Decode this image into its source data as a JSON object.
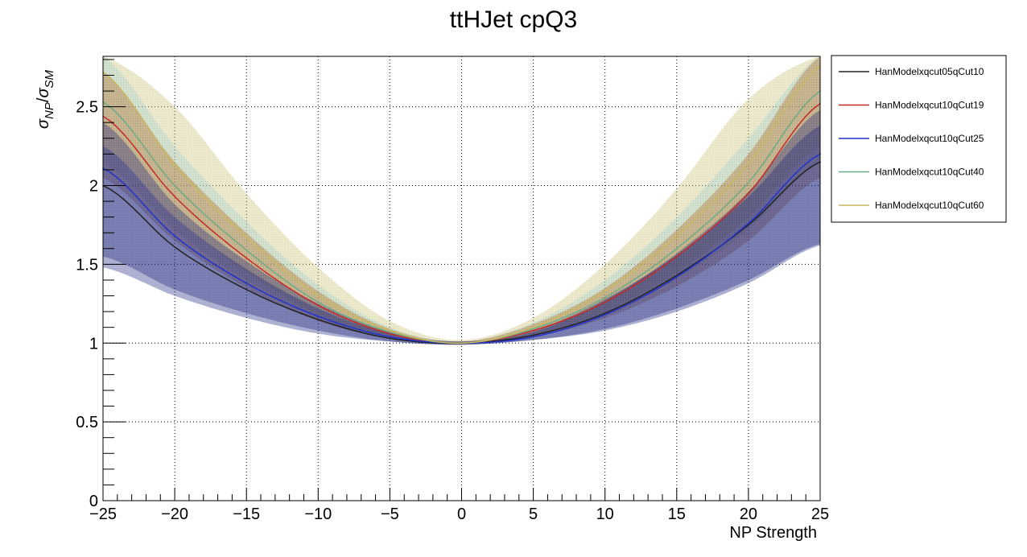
{
  "chart_data": {
    "type": "line",
    "title": "ttHJet cpQ3",
    "xlabel": "NP Strength",
    "ylabel": "σNP/σSM",
    "ylabel_parts": {
      "main_a": "σ",
      "sub_a": "NP",
      "slash": "/",
      "main_b": "σ",
      "sub_b": "SM"
    },
    "xlim": [
      -25,
      25
    ],
    "ylim": [
      0,
      2.82
    ],
    "x_ticks": [
      -25,
      -20,
      -15,
      -10,
      -5,
      0,
      5,
      10,
      15,
      20,
      25
    ],
    "x_tick_labels": [
      "−25",
      "−20",
      "−15",
      "−10",
      "−5",
      "0",
      "5",
      "10",
      "15",
      "20",
      "25"
    ],
    "y_ticks": [
      0,
      0.5,
      1,
      1.5,
      2,
      2.5
    ],
    "y_tick_labels": [
      "0",
      "0.5",
      "1",
      "1.5",
      "2",
      "2.5"
    ],
    "grid": true,
    "legend_position": "right",
    "x": [
      -25,
      -20,
      -15,
      -10,
      -5,
      0,
      5,
      10,
      15,
      20,
      25
    ],
    "series": [
      {
        "name": "HanModelxqcut05qCut10",
        "color": "#222222",
        "band_color": "#1a237e",
        "values": [
          2.0,
          1.61,
          1.34,
          1.15,
          1.03,
          1.0,
          1.05,
          1.19,
          1.43,
          1.75,
          2.15
        ],
        "band_low": [
          1.48,
          1.3,
          1.16,
          1.06,
          1.01,
          0.99,
          1.02,
          1.09,
          1.22,
          1.4,
          1.63
        ],
        "band_high": [
          2.25,
          1.8,
          1.47,
          1.22,
          1.06,
          1.01,
          1.08,
          1.28,
          1.56,
          1.93,
          2.38
        ]
      },
      {
        "name": "HanModelxqcut10qCut19",
        "color": "#c62828",
        "band_color": "#b5651d",
        "values": [
          2.44,
          1.93,
          1.54,
          1.24,
          1.06,
          1.0,
          1.08,
          1.26,
          1.55,
          1.95,
          2.52
        ],
        "band_low": [
          2.05,
          1.65,
          1.35,
          1.14,
          1.03,
          0.99,
          1.04,
          1.16,
          1.36,
          1.65,
          2.05
        ],
        "band_high": [
          2.72,
          2.15,
          1.7,
          1.33,
          1.09,
          1.01,
          1.12,
          1.35,
          1.72,
          2.2,
          2.82
        ]
      },
      {
        "name": "HanModelxqcut10qCut25",
        "color": "#2233cc",
        "band_color": "#1a237e",
        "values": [
          2.11,
          1.68,
          1.38,
          1.17,
          1.04,
          1.0,
          1.04,
          1.18,
          1.42,
          1.76,
          2.2
        ],
        "band_low": [
          1.55,
          1.34,
          1.19,
          1.08,
          1.01,
          0.99,
          1.02,
          1.08,
          1.2,
          1.38,
          1.62
        ],
        "band_high": [
          2.4,
          1.88,
          1.52,
          1.25,
          1.07,
          1.01,
          1.07,
          1.27,
          1.57,
          1.96,
          2.48
        ]
      },
      {
        "name": "HanModelxqcut10qCut40",
        "color": "#6aaa88",
        "band_color": "#a6d8d4",
        "values": [
          2.53,
          2.0,
          1.59,
          1.26,
          1.07,
          1.0,
          1.09,
          1.29,
          1.6,
          2.02,
          2.6
        ],
        "band_low": [
          2.15,
          1.72,
          1.4,
          1.16,
          1.03,
          0.99,
          1.05,
          1.18,
          1.41,
          1.72,
          2.15
        ],
        "band_high": [
          2.82,
          2.25,
          1.77,
          1.37,
          1.1,
          1.01,
          1.13,
          1.4,
          1.8,
          2.3,
          2.82
        ]
      },
      {
        "name": "HanModelxqcut10qCut60",
        "color": "#c8b860",
        "band_color": "#c8c070",
        "values": [
          2.72,
          2.13,
          1.67,
          1.3,
          1.08,
          1.0,
          1.1,
          1.33,
          1.68,
          2.14,
          2.76
        ],
        "band_low": [
          2.25,
          1.8,
          1.45,
          1.18,
          1.04,
          0.99,
          1.05,
          1.2,
          1.45,
          1.8,
          2.25
        ],
        "band_high": [
          2.82,
          2.5,
          1.95,
          1.48,
          1.14,
          1.02,
          1.16,
          1.5,
          1.98,
          2.55,
          2.82
        ]
      }
    ]
  }
}
